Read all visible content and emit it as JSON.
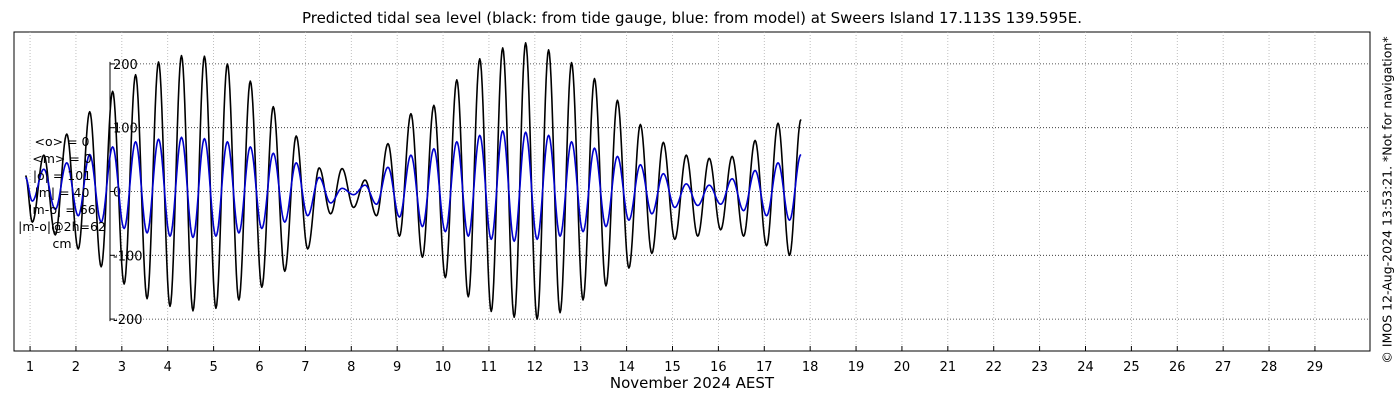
{
  "chart_data": {
    "type": "line",
    "title": "Predicted tidal sea level (black: from tide gauge, blue: from model) at Sweers Island 17.113S 139.595E.",
    "xlabel": "November 2024 AEST",
    "ylabel": "",
    "xlim": [
      0.65,
      30.2
    ],
    "ylim": [
      -250,
      250
    ],
    "x_ticks": [
      "1",
      "2",
      "3",
      "4",
      "5",
      "6",
      "7",
      "8",
      "9",
      "10",
      "11",
      "12",
      "13",
      "14",
      "15",
      "16",
      "17",
      "18",
      "19",
      "20",
      "21",
      "22",
      "23",
      "24",
      "25",
      "26",
      "27",
      "28",
      "29"
    ],
    "y_ticks": [
      -200,
      -100,
      0,
      100,
      200
    ],
    "grid": true,
    "legend": "none",
    "colors": {
      "gauge": "#000000",
      "model": "#0000cc"
    },
    "series": [
      {
        "key": "gauge",
        "color": "#000000",
        "points": [
          [
            0.9,
            25
          ],
          [
            1.05,
            -48
          ],
          [
            1.3,
            57
          ],
          [
            1.55,
            -68
          ],
          [
            1.8,
            90
          ],
          [
            2.05,
            -90
          ],
          [
            2.3,
            125
          ],
          [
            2.55,
            -118
          ],
          [
            2.8,
            157
          ],
          [
            3.05,
            -145
          ],
          [
            3.3,
            183
          ],
          [
            3.55,
            -168
          ],
          [
            3.8,
            203
          ],
          [
            4.05,
            -180
          ],
          [
            4.3,
            213
          ],
          [
            4.55,
            -187
          ],
          [
            4.8,
            212
          ],
          [
            5.05,
            -183
          ],
          [
            5.3,
            200
          ],
          [
            5.55,
            -170
          ],
          [
            5.8,
            173
          ],
          [
            6.05,
            -150
          ],
          [
            6.3,
            133
          ],
          [
            6.55,
            -125
          ],
          [
            6.8,
            87
          ],
          [
            7.05,
            -90
          ],
          [
            7.3,
            37
          ],
          [
            7.55,
            -35
          ],
          [
            7.8,
            36
          ],
          [
            8.05,
            -25
          ],
          [
            8.3,
            18
          ],
          [
            8.55,
            -38
          ],
          [
            8.8,
            75
          ],
          [
            9.05,
            -70
          ],
          [
            9.3,
            122
          ],
          [
            9.55,
            -103
          ],
          [
            9.8,
            135
          ],
          [
            10.05,
            -135
          ],
          [
            10.3,
            175
          ],
          [
            10.55,
            -165
          ],
          [
            10.8,
            208
          ],
          [
            11.05,
            -188
          ],
          [
            11.3,
            225
          ],
          [
            11.55,
            -197
          ],
          [
            11.8,
            233
          ],
          [
            12.05,
            -200
          ],
          [
            12.3,
            222
          ],
          [
            12.55,
            -190
          ],
          [
            12.8,
            202
          ],
          [
            13.05,
            -170
          ],
          [
            13.3,
            177
          ],
          [
            13.55,
            -148
          ],
          [
            13.8,
            143
          ],
          [
            14.05,
            -120
          ],
          [
            14.3,
            105
          ],
          [
            14.55,
            -97
          ],
          [
            14.8,
            77
          ],
          [
            15.05,
            -75
          ],
          [
            15.3,
            57
          ],
          [
            15.55,
            -70
          ],
          [
            15.8,
            52
          ],
          [
            16.05,
            -60
          ],
          [
            16.3,
            55
          ],
          [
            16.55,
            -70
          ],
          [
            16.8,
            80
          ],
          [
            17.05,
            -85
          ],
          [
            17.3,
            107
          ],
          [
            17.55,
            -100
          ],
          [
            17.8,
            113
          ]
        ]
      },
      {
        "key": "model",
        "color": "#0000cc",
        "points": [
          [
            0.9,
            22
          ],
          [
            1.05,
            -15
          ],
          [
            1.3,
            35
          ],
          [
            1.55,
            -28
          ],
          [
            1.8,
            45
          ],
          [
            2.05,
            -38
          ],
          [
            2.3,
            58
          ],
          [
            2.55,
            -48
          ],
          [
            2.8,
            70
          ],
          [
            3.05,
            -58
          ],
          [
            3.3,
            78
          ],
          [
            3.55,
            -65
          ],
          [
            3.8,
            82
          ],
          [
            4.05,
            -70
          ],
          [
            4.3,
            85
          ],
          [
            4.55,
            -72
          ],
          [
            4.8,
            83
          ],
          [
            5.05,
            -70
          ],
          [
            5.3,
            78
          ],
          [
            5.55,
            -65
          ],
          [
            5.8,
            70
          ],
          [
            6.05,
            -58
          ],
          [
            6.3,
            60
          ],
          [
            6.55,
            -48
          ],
          [
            6.8,
            45
          ],
          [
            7.05,
            -38
          ],
          [
            7.3,
            22
          ],
          [
            7.55,
            -18
          ],
          [
            7.8,
            5
          ],
          [
            8.05,
            -5
          ],
          [
            8.3,
            10
          ],
          [
            8.55,
            -20
          ],
          [
            8.8,
            38
          ],
          [
            9.05,
            -40
          ],
          [
            9.3,
            57
          ],
          [
            9.55,
            -55
          ],
          [
            9.8,
            67
          ],
          [
            10.05,
            -63
          ],
          [
            10.3,
            78
          ],
          [
            10.55,
            -70
          ],
          [
            10.8,
            88
          ],
          [
            11.05,
            -75
          ],
          [
            11.3,
            95
          ],
          [
            11.55,
            -78
          ],
          [
            11.8,
            93
          ],
          [
            12.05,
            -75
          ],
          [
            12.3,
            88
          ],
          [
            12.55,
            -70
          ],
          [
            12.8,
            78
          ],
          [
            13.05,
            -63
          ],
          [
            13.3,
            68
          ],
          [
            13.55,
            -55
          ],
          [
            13.8,
            55
          ],
          [
            14.05,
            -45
          ],
          [
            14.3,
            42
          ],
          [
            14.55,
            -35
          ],
          [
            14.8,
            28
          ],
          [
            15.05,
            -25
          ],
          [
            15.3,
            12
          ],
          [
            15.55,
            -22
          ],
          [
            15.8,
            10
          ],
          [
            16.05,
            -20
          ],
          [
            16.3,
            20
          ],
          [
            16.55,
            -30
          ],
          [
            16.8,
            33
          ],
          [
            17.05,
            -38
          ],
          [
            17.3,
            45
          ],
          [
            17.55,
            -45
          ],
          [
            17.8,
            58
          ]
        ]
      }
    ],
    "stats_lines": [
      "<o> = 0",
      "<m> = 0",
      "|o| = 101",
      "|m| = 40",
      "|m-o| = 66",
      "|m-o|@2h=62",
      "cm"
    ],
    "credit": "© IMOS 12-Aug-2024 13:53:21. *Not for navigation*"
  }
}
